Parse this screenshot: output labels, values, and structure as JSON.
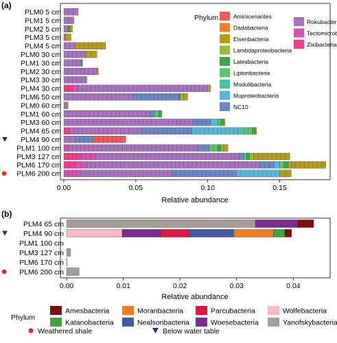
{
  "chart_data": [
    {
      "panel_label": "(a)",
      "type": "bar",
      "orientation": "horizontal",
      "stacked": true,
      "xlabel": "Relative abundance",
      "ylabel": "",
      "xlim": [
        0,
        0.185
      ],
      "xticks": [
        0.0,
        0.05,
        0.1,
        0.15
      ],
      "xtick_labels": [
        "0.00",
        "0.05",
        "0.10",
        "0.15"
      ],
      "grid": false,
      "categories": [
        "PLM0 5 cm",
        "PLM1 5 cm",
        "PLM2 5 cm",
        "PLM3 5 cm",
        "PLM4 5 cm",
        "PLM0 30 cm",
        "PLM1 30 cm",
        "PLM2 30 cm",
        "PLM3 30 cm",
        "PLM4 30 cm",
        "PLM6 50 cm",
        "PLM0 60 cm",
        "PLM1 60 cm",
        "PLM3 60 cm",
        "PLM4 65 cm",
        "PLM4 90 cm",
        "PLM1 100 cm",
        "PLM3 127 cm",
        "PLM6 170 cm",
        "PLM6 200 cm"
      ],
      "markers": [
        "",
        "",
        "",
        "",
        "",
        "",
        "",
        "",
        "",
        "",
        "",
        "",
        "",
        "",
        "",
        "below-water-table",
        "",
        "",
        "",
        "weathered-shale"
      ],
      "legend": {
        "title": "Phylum",
        "position": "top-right-inside",
        "col1": [
          "Aminicenantes",
          "Dadabacteria",
          "Eisenbacteria",
          "Lambdaproteobacteria",
          "Latesbacteria",
          "Liptonbacteria",
          "Modulibacteria",
          "Muproteobacteria",
          "NC10"
        ],
        "col2": [
          "Rokubacteria",
          "Tectomicrobia",
          "Zixibacteria"
        ]
      },
      "colors": {
        "Aminicenantes": "#ee5a60",
        "Dadabacteria": "#ee7f2a",
        "Eisenbacteria": "#b49a1e",
        "Lambdaproteobacteria": "#9aba3a",
        "Latesbacteria": "#3fa548",
        "Liptonbacteria": "#5cc26c",
        "Modulibacteria": "#4fc3a0",
        "Muproteobacteria": "#56b7d6",
        "NC10": "#6a86c8",
        "Rokubacteria": "#a872c0",
        "Tectomicrobia": "#d353b0",
        "Zixibacteria": "#ee3f8a"
      },
      "series": [
        {
          "name": "Zixibacteria",
          "values": [
            0,
            0,
            0,
            0,
            0,
            0,
            0,
            0,
            0,
            0.006,
            0,
            0,
            0,
            0,
            0.004,
            0,
            0,
            0.012,
            0.008,
            0
          ]
        },
        {
          "name": "Tectomicrobia",
          "values": [
            0,
            0,
            0,
            0,
            0,
            0,
            0,
            0,
            0,
            0.004,
            0,
            0,
            0,
            0,
            0,
            0,
            0.003,
            0.01,
            0.008,
            0.012
          ]
        },
        {
          "name": "Rokubacteria",
          "values": [
            0.01,
            0.007,
            0.003,
            0.001,
            0.008,
            0.015,
            0.012,
            0.023,
            0.015,
            0.09,
            0.048,
            0.002,
            0.06,
            0.09,
            0.05,
            0.008,
            0.09,
            0.1,
            0.12,
            0.063
          ]
        },
        {
          "name": "NC10",
          "values": [
            0,
            0,
            0,
            0,
            0,
            0,
            0,
            0,
            0,
            0,
            0.032,
            0,
            0.003,
            0.012,
            0.035,
            0.012,
            0.008,
            0.003,
            0.01,
            0.045
          ]
        },
        {
          "name": "Muproteobacteria",
          "values": [
            0,
            0,
            0,
            0,
            0,
            0,
            0,
            0,
            0,
            0,
            0,
            0,
            0,
            0.005,
            0.032,
            0,
            0,
            0,
            0.004,
            0.03
          ]
        },
        {
          "name": "Modulibacteria",
          "values": [
            0,
            0,
            0,
            0,
            0,
            0,
            0,
            0,
            0,
            0,
            0,
            0,
            0,
            0,
            0.004,
            0,
            0,
            0,
            0,
            0
          ]
        },
        {
          "name": "Liptonbacteria",
          "values": [
            0,
            0,
            0,
            0,
            0,
            0,
            0,
            0,
            0.001,
            0,
            0,
            0,
            0.003,
            0.002,
            0.006,
            0,
            0.006,
            0.002,
            0.003,
            0
          ]
        },
        {
          "name": "Latesbacteria",
          "values": [
            0,
            0,
            0.001,
            0,
            0,
            0,
            0.001,
            0,
            0,
            0,
            0.001,
            0,
            0.002,
            0.002,
            0.002,
            0,
            0.002,
            0.002,
            0.003,
            0
          ]
        },
        {
          "name": "Lambdaproteobacteria",
          "values": [
            0,
            0,
            0,
            0,
            0,
            0,
            0,
            0,
            0,
            0,
            0.002,
            0,
            0,
            0,
            0,
            0,
            0.002,
            0.003,
            0.002,
            0
          ]
        },
        {
          "name": "Eisenbacteria",
          "values": [
            0,
            0,
            0.002,
            0.004,
            0.021,
            0.008,
            0,
            0.001,
            0,
            0.002,
            0.003,
            0.001,
            0,
            0.001,
            0.001,
            0,
            0.003,
            0.025,
            0.024,
            0.008
          ]
        },
        {
          "name": "Dadabacteria",
          "values": [
            0,
            0,
            0,
            0,
            0,
            0,
            0,
            0,
            0,
            0,
            0,
            0,
            0,
            0,
            0,
            0.001,
            0,
            0,
            0,
            0
          ]
        },
        {
          "name": "Aminicenantes",
          "values": [
            0,
            0,
            0,
            0,
            0,
            0,
            0,
            0,
            0,
            0,
            0,
            0,
            0,
            0,
            0,
            0.022,
            0,
            0,
            0,
            0
          ]
        }
      ]
    },
    {
      "panel_label": "(b)",
      "type": "bar",
      "orientation": "horizontal",
      "stacked": true,
      "xlabel": "Relative abundance",
      "ylabel": "",
      "xlim": [
        0,
        0.0465
      ],
      "xticks": [
        0.0,
        0.01,
        0.02,
        0.03,
        0.04
      ],
      "xtick_labels": [
        "0.00",
        "0.01",
        "0.02",
        "0.03",
        "0.04"
      ],
      "grid": false,
      "categories": [
        "PLM4 65 cm",
        "PLM4 90 cm",
        "PLM1 100 cm",
        "PLM3 127 cm",
        "PLM6 170 cm",
        "PLM6 200 cm"
      ],
      "markers": [
        "",
        "below-water-table",
        "",
        "",
        "",
        "weathered-shale"
      ],
      "legend": {
        "title": "Phylum",
        "position": "bottom",
        "items": [
          "Amesbacteria",
          "Katanobacteria",
          "Moranbacteria",
          "Nealsonbacteria",
          "Parcubacteria",
          "Woesebacteria",
          "Wolfebacteria",
          "Yanofskybacteria"
        ]
      },
      "colors": {
        "Amesbacteria": "#7d1010",
        "Katanobacteria": "#3fa53a",
        "Moranbacteria": "#f07d24",
        "Nealsonbacteria": "#4655a8",
        "Parcubacteria": "#e0183f",
        "Woesebacteria": "#7e2a90",
        "Wolfebacteria": "#f7b8c4",
        "Yanofskybacteria": "#a89e98"
      },
      "series": [
        {
          "name": "Yanofskybacteria",
          "values": [
            0.0333,
            0,
            0,
            0.0007,
            0.0001,
            0.0022
          ]
        },
        {
          "name": "Wolfebacteria",
          "values": [
            0,
            0.0098,
            0,
            0,
            0,
            0
          ]
        },
        {
          "name": "Woesebacteria",
          "values": [
            0.0075,
            0.0068,
            0,
            0,
            0,
            0
          ]
        },
        {
          "name": "Parcubacteria",
          "values": [
            0,
            0.005,
            0,
            0,
            0,
            0
          ]
        },
        {
          "name": "Nealsonbacteria",
          "values": [
            0,
            0.0079,
            0,
            0,
            0,
            0
          ]
        },
        {
          "name": "Moranbacteria",
          "values": [
            0,
            0.007,
            0,
            0,
            0,
            0
          ]
        },
        {
          "name": "Katanobacteria",
          "values": [
            0,
            0.002,
            0,
            0,
            0,
            0
          ]
        },
        {
          "name": "Amesbacteria",
          "values": [
            0.0028,
            0.0012,
            0,
            0,
            0,
            0
          ]
        }
      ]
    }
  ],
  "footnotes": {
    "weathered_shale_label": "Weathered shale",
    "below_water_table_label": "Below water table",
    "weathered_shale_color": "#e52620",
    "below_water_table_color": "#2b2a7a"
  }
}
